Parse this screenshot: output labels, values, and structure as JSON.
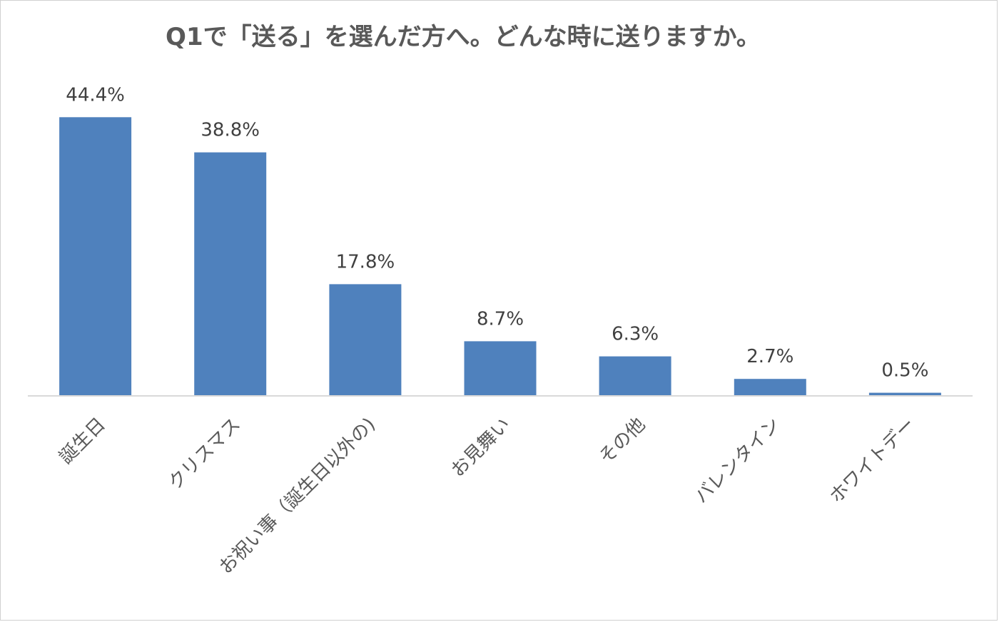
{
  "chart_data": {
    "type": "bar",
    "title": "Q1で「送る」を選んだ方へ。どんな時に送りますか。",
    "xlabel": "",
    "ylabel": "",
    "categories": [
      "誕生日",
      "クリスマス",
      "お祝い事（誕生日以外の)",
      "お見舞い",
      "その他",
      "バレンタイン",
      "ホワイトデー"
    ],
    "values": [
      44.4,
      38.8,
      17.8,
      8.7,
      6.3,
      2.7,
      0.5
    ],
    "value_labels": [
      "44.4%",
      "38.8%",
      "17.8%",
      "8.7%",
      "6.3%",
      "2.7%",
      "0.5%"
    ],
    "unit": "%",
    "ylim": [
      0,
      50
    ],
    "grid": false,
    "legend": "none",
    "bar_color": "#4f81bd",
    "axis_color": "#d9d9d9"
  }
}
